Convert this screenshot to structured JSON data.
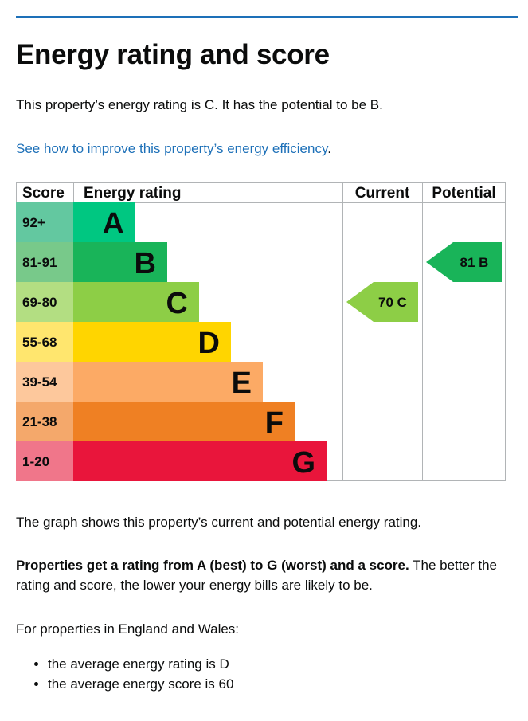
{
  "page": {
    "title": "Energy rating and score",
    "intro": "This property’s energy rating is C. It has the potential to be B.",
    "improve_link": "See how to improve this property’s energy efficiency",
    "improve_link_suffix": ".",
    "graph_caption": "The graph shows this property’s current and potential energy rating.",
    "rating_bold": "Properties get a rating from A (best) to G (worst) and a score.",
    "rating_rest": " The better the rating and score, the lower your energy bills are likely to be.",
    "wales_intro": "For properties in England and Wales:",
    "averages": [
      "the average energy rating is D",
      "the average energy score is 60"
    ]
  },
  "chart_data": {
    "type": "table",
    "headers": {
      "score": "Score",
      "rating": "Energy rating",
      "current": "Current",
      "potential": "Potential"
    },
    "bands": [
      {
        "score": "92+",
        "letter": "A",
        "color": "#00c781",
        "score_color": "#63c8a0"
      },
      {
        "score": "81-91",
        "letter": "B",
        "color": "#19b459",
        "score_color": "#78c98a"
      },
      {
        "score": "69-80",
        "letter": "C",
        "color": "#8dce46",
        "score_color": "#b3de82"
      },
      {
        "score": "55-68",
        "letter": "D",
        "color": "#ffd500",
        "score_color": "#ffe66e"
      },
      {
        "score": "39-54",
        "letter": "E",
        "color": "#fcaa65",
        "score_color": "#fdc89c"
      },
      {
        "score": "21-38",
        "letter": "F",
        "color": "#ef8023",
        "score_color": "#f4a86b"
      },
      {
        "score": "1-20",
        "letter": "G",
        "color": "#e9153b",
        "score_color": "#f0768a"
      }
    ],
    "current": {
      "score": 70,
      "letter": "C",
      "label": "70  C",
      "color": "#8dce46"
    },
    "potential": {
      "score": 81,
      "letter": "B",
      "label": "81  B",
      "color": "#19b459"
    },
    "border_color": "#b1b4b6"
  }
}
